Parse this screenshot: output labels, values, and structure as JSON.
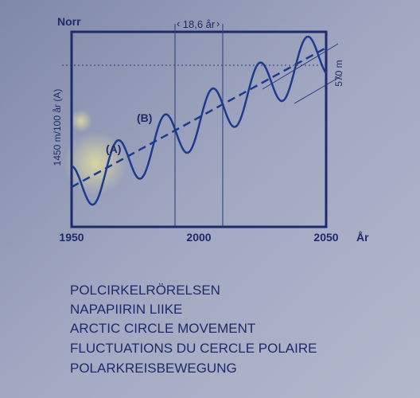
{
  "chart": {
    "north": "Norr",
    "period": "18,6 år",
    "rate": "1450 m/100 år (A)",
    "amplitude": "570 m",
    "label_a": "(A)",
    "label_b": "(B)",
    "x_labels": [
      "1950",
      "2000",
      "2050"
    ],
    "x_unit": "År"
  },
  "caption": [
    "POLCIRKELRÖRELSEN",
    "NAPAPIIRIN LIIKE",
    "ARCTIC CIRCLE MOVEMENT",
    "FLUCTUATIONS DU CERCLE POLAIRE",
    "POLARKREISBEWEGUNG"
  ]
}
